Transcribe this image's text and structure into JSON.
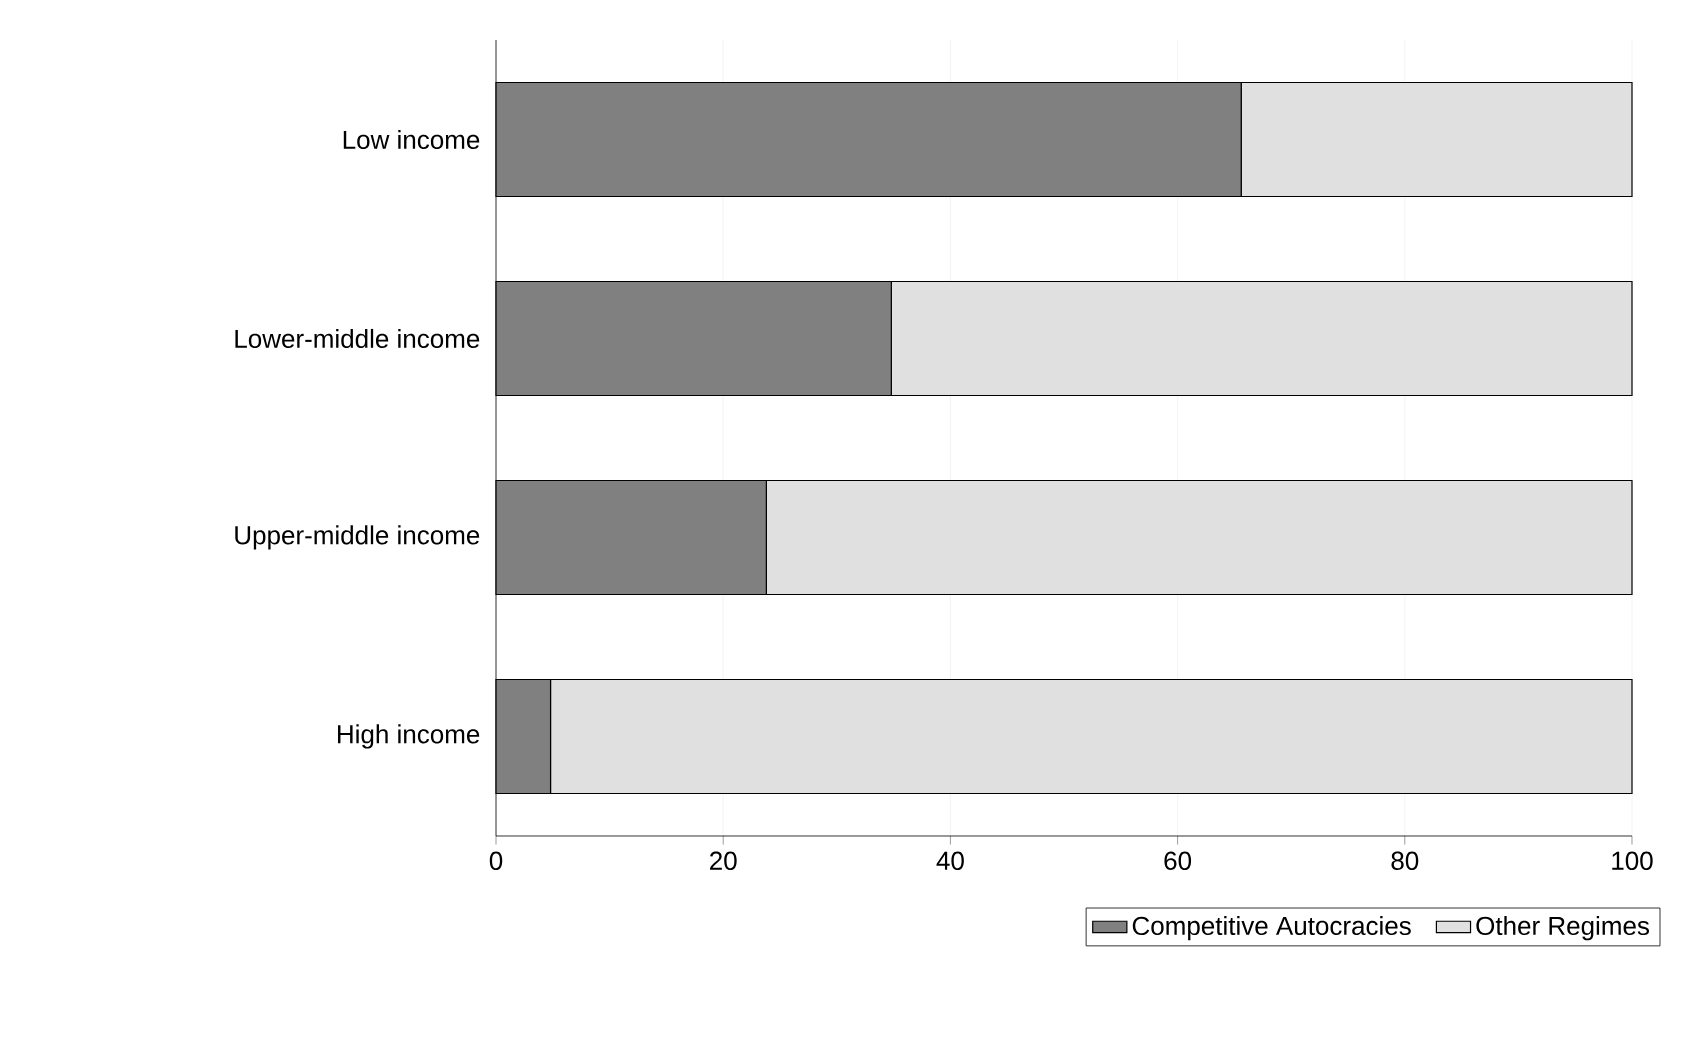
{
  "chart_data": {
    "type": "bar",
    "orientation": "horizontal",
    "stacked": true,
    "categories": [
      "Low income",
      "Lower-middle income",
      "Upper-middle income",
      "High income"
    ],
    "series": [
      {
        "name": "Competitive Autocracies",
        "color": "#808080",
        "values": [
          65.6,
          34.8,
          23.8,
          4.8
        ]
      },
      {
        "name": "Other Regimes",
        "color": "#e0e0e0",
        "values": [
          34.4,
          65.2,
          76.2,
          95.2
        ]
      }
    ],
    "xlim": [
      0,
      100
    ],
    "xticks": [
      0,
      20,
      40,
      60,
      80,
      100
    ],
    "grid": "x",
    "legend": "bottom"
  }
}
